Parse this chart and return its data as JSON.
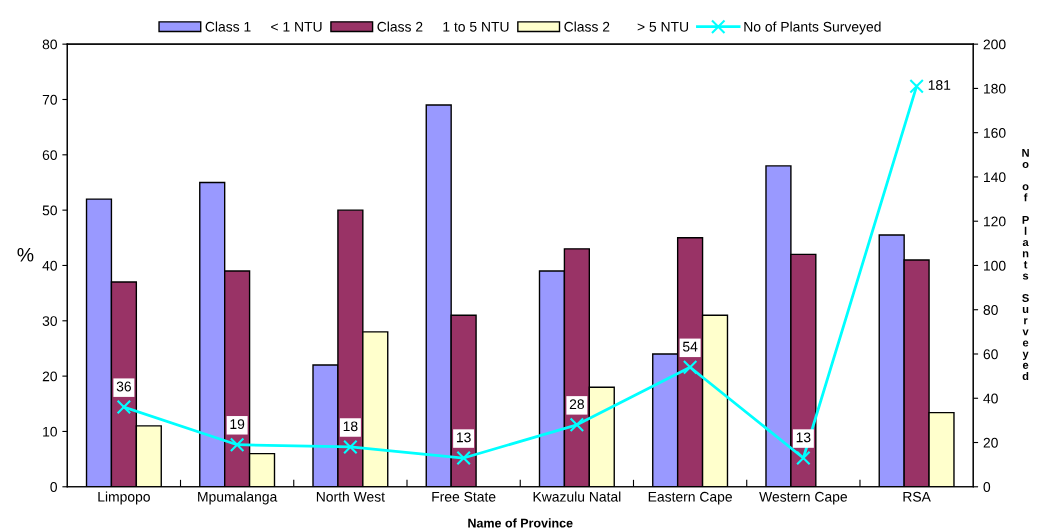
{
  "chart_data": {
    "type": "bar",
    "categories": [
      "Limpopo",
      "Mpumalanga",
      "North West",
      "Free State",
      "Kwazulu Natal",
      "Eastern Cape",
      "Western Cape",
      "RSA"
    ],
    "series": [
      {
        "name": "Class 1     < 1 NTU",
        "color": "#9999ff",
        "values": [
          52,
          55,
          22,
          69,
          39,
          24,
          58,
          45.5
        ]
      },
      {
        "name": "Class 2     1 to 5 NTU",
        "color": "#993366",
        "values": [
          37,
          39,
          50,
          31,
          43,
          45,
          42,
          41
        ]
      },
      {
        "name": "Class 2       > 5 NTU",
        "color": "#ffffcc",
        "values": [
          11,
          6,
          28,
          null,
          18,
          31,
          null,
          13.4
        ]
      },
      {
        "name": "No of Plants Surveyed",
        "color": "#00ffff",
        "type": "line",
        "axis": "y2",
        "marker": "cross",
        "data_labels": true,
        "values": [
          36,
          19,
          18,
          13,
          28,
          54,
          13,
          181
        ]
      }
    ],
    "xlabel": "Name of Province",
    "ylabel": "%",
    "y2label": "No of Plants Surveyed",
    "ylim": [
      0,
      80
    ],
    "yticks": [
      0,
      10,
      20,
      30,
      40,
      50,
      60,
      70,
      80
    ],
    "y2lim": [
      0,
      200
    ],
    "y2ticks": [
      0,
      20,
      40,
      60,
      80,
      100,
      120,
      140,
      160,
      180,
      200
    ],
    "grid": false,
    "legend": "top"
  }
}
